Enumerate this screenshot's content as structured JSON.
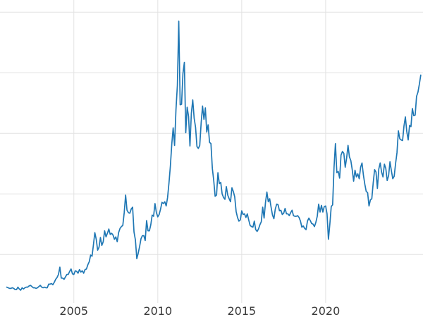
{
  "chart_data": {
    "type": "line",
    "title": "",
    "xlabel": "",
    "ylabel": "",
    "legend": null,
    "grid": true,
    "line_color": "#1f77b4",
    "grid_color": "#e2e2e2",
    "tick_label_color": "#3a3a3a",
    "xlim": [
      2000.6,
      2025.8
    ],
    "ylim": [
      2,
      52
    ],
    "x_ticks": [
      2005,
      2010,
      2015,
      2020
    ],
    "y_gridlines": [
      10,
      20,
      30,
      40,
      50
    ],
    "x_start_year": 2001,
    "points_per_year": 12,
    "values": [
      4.6,
      4.5,
      4.4,
      4.4,
      4.5,
      4.4,
      4.2,
      4.2,
      4.6,
      4.3,
      4.1,
      4.5,
      4.3,
      4.5,
      4.6,
      4.6,
      4.8,
      4.9,
      4.7,
      4.5,
      4.5,
      4.4,
      4.5,
      4.7,
      4.9,
      4.6,
      4.5,
      4.6,
      4.5,
      4.5,
      5.1,
      5.1,
      5.2,
      5.0,
      5.4,
      5.9,
      6.2,
      6.7,
      7.9,
      6.1,
      6.1,
      5.9,
      6.3,
      6.7,
      6.7,
      7.2,
      7.6,
      6.8,
      6.7,
      7.3,
      7.2,
      6.9,
      7.5,
      7.1,
      7.3,
      6.9,
      7.5,
      7.6,
      8.3,
      8.8,
      9.9,
      9.7,
      11.6,
      13.6,
      12.5,
      10.7,
      11.2,
      12.8,
      11.5,
      12.1,
      13.9,
      12.9,
      13.5,
      14.2,
      13.3,
      13.5,
      13.2,
      12.5,
      12.9,
      12.1,
      13.6,
      14.3,
      14.6,
      14.8,
      16.9,
      19.8,
      17.3,
      16.9,
      16.8,
      17.5,
      17.8,
      13.7,
      12.4,
      9.3,
      10.2,
      11.3,
      12.6,
      13.1,
      13.1,
      12.3,
      15.6,
      13.9,
      13.9,
      14.9,
      16.5,
      16.3,
      18.4,
      16.9,
      16.2,
      16.6,
      17.5,
      18.6,
      18.4,
      18.7,
      18.0,
      19.4,
      21.8,
      24.6,
      28.2,
      30.9,
      28.0,
      33.9,
      37.9,
      48.5,
      34.7,
      34.8,
      39.9,
      41.7,
      30.1,
      34.3,
      32.8,
      27.9,
      33.3,
      35.5,
      32.5,
      31.0,
      27.8,
      27.5,
      28.0,
      31.7,
      34.5,
      32.3,
      34.2,
      30.2,
      31.4,
      28.5,
      28.3,
      24.2,
      22.2,
      19.6,
      19.8,
      23.5,
      21.7,
      21.9,
      20.0,
      19.4,
      19.1,
      21.2,
      19.8,
      19.2,
      18.7,
      21.0,
      20.4,
      19.5,
      17.1,
      16.1,
      15.5,
      15.7,
      17.2,
      16.6,
      16.7,
      16.1,
      16.7,
      15.7,
      14.8,
      14.6,
      14.5,
      15.5,
      14.1,
      13.8,
      14.2,
      14.9,
      15.4,
      17.8,
      16.0,
      18.6,
      20.3,
      18.7,
      19.2,
      17.8,
      16.5,
      15.9,
      17.5,
      18.3,
      18.2,
      17.2,
      17.3,
      16.6,
      16.8,
      17.6,
      16.7,
      16.7,
      16.4,
      16.9,
      17.3,
      16.4,
      16.3,
      16.3,
      16.4,
      16.1,
      15.5,
      14.5,
      14.7,
      14.3,
      14.1,
      15.5,
      16.0,
      15.6,
      15.1,
      15.0,
      14.6,
      15.3,
      16.3,
      18.3,
      17.0,
      18.1,
      17.0,
      17.9,
      18.0,
      16.7,
      12.5,
      15.0,
      17.9,
      18.2,
      24.4,
      28.3,
      23.5,
      23.7,
      22.6,
      26.4,
      27.0,
      26.7,
      24.4,
      25.9,
      28.0,
      26.1,
      25.5,
      24.0,
      22.1,
      23.9,
      22.8,
      23.3,
      22.5,
      24.4,
      25.1,
      23.1,
      21.6,
      20.4,
      20.2,
      18.0,
      19.0,
      19.2,
      21.8,
      24.0,
      23.6,
      20.9,
      24.1,
      25.1,
      23.6,
      22.8,
      24.9,
      24.2,
      22.2,
      23.0,
      25.3,
      23.8,
      22.5,
      22.9,
      25.0,
      26.8,
      30.4,
      29.1,
      28.9,
      28.8,
      31.2,
      32.7,
      30.3,
      28.9,
      31.3,
      31.1,
      34.1,
      32.9,
      33.0,
      36.1,
      36.8,
      38.1,
      39.6
    ]
  }
}
